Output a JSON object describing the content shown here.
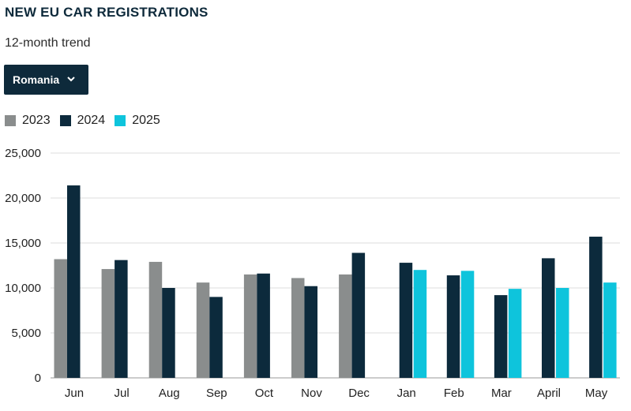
{
  "header": {
    "title": "NEW EU CAR REGISTRATIONS",
    "subtitle": "12-month trend"
  },
  "selector": {
    "selected": "Romania",
    "icon": "chevron-down-icon"
  },
  "colors": {
    "2023": "#8a8d8d",
    "2024": "#0c2a3c",
    "2025": "#0ec4dc",
    "grid": "#dcdcdc",
    "dropdown_bg": "#0e2a3b"
  },
  "chart_data": {
    "type": "bar",
    "title": "NEW EU CAR REGISTRATIONS",
    "subtitle": "12-month trend",
    "xlabel": "",
    "ylabel": "",
    "ylim": [
      0,
      25000
    ],
    "yticks": [
      0,
      5000,
      10000,
      15000,
      20000,
      25000
    ],
    "ytick_labels": [
      "0",
      "5,000",
      "10,000",
      "15,000",
      "20,000",
      "25,000"
    ],
    "grid": true,
    "legend_position": "top-left",
    "categories": [
      "Jun",
      "Jul",
      "Aug",
      "Sep",
      "Oct",
      "Nov",
      "Dec",
      "Jan",
      "Feb",
      "Mar",
      "April",
      "May"
    ],
    "series": [
      {
        "name": "2023",
        "values": [
          13200,
          12100,
          12900,
          10600,
          11500,
          11100,
          11500,
          null,
          null,
          null,
          null,
          null
        ]
      },
      {
        "name": "2024",
        "values": [
          21400,
          13100,
          10000,
          9000,
          11600,
          10200,
          13900,
          12800,
          11400,
          9200,
          13300,
          15700
        ]
      },
      {
        "name": "2025",
        "values": [
          null,
          null,
          null,
          null,
          null,
          null,
          null,
          12000,
          11900,
          9900,
          10000,
          10600
        ]
      }
    ]
  }
}
